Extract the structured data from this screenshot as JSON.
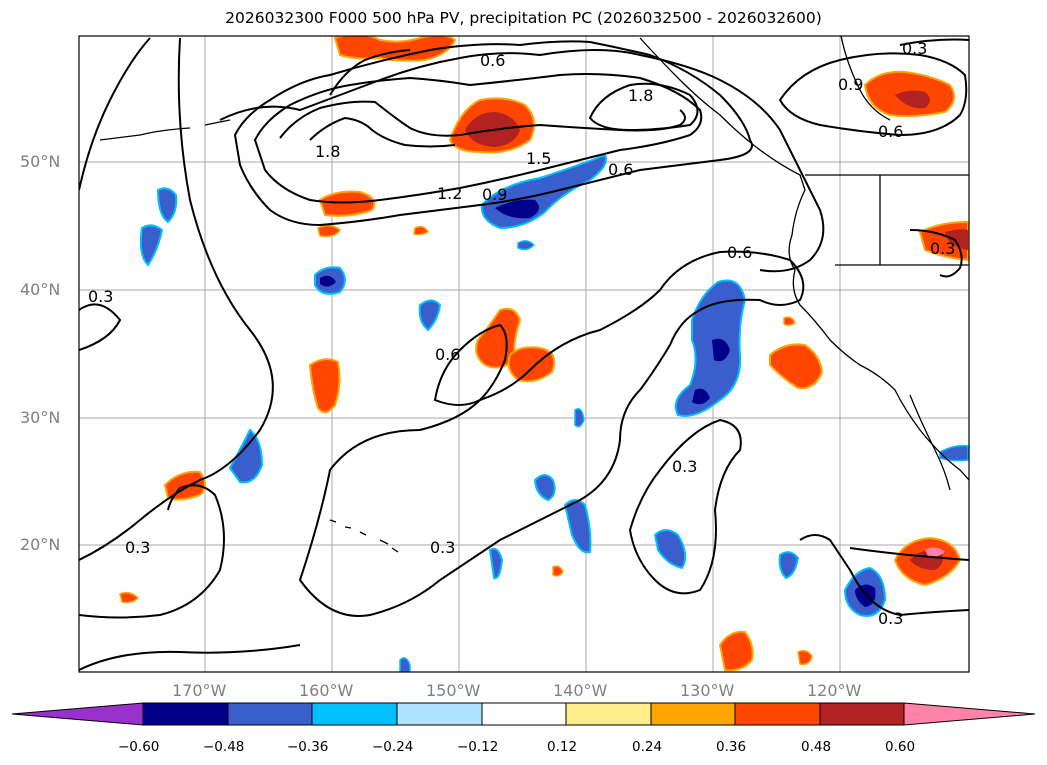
{
  "title": "2026032300 F000 500 hPa PV, precipitation PC (2026032500 - 2026032600)",
  "map": {
    "lat_labels": [
      "50°N",
      "40°N",
      "30°N",
      "20°N"
    ],
    "lon_labels": [
      "170°W",
      "160°W",
      "150°W",
      "140°W",
      "130°W",
      "120°W"
    ],
    "contour_labels": [
      "0.3",
      "0.3",
      "0.3",
      "0.3",
      "0.3",
      "0.3",
      "0.3",
      "0.6",
      "0.6",
      "0.6",
      "0.6",
      "0.6",
      "0.9",
      "0.9",
      "1.2",
      "1.5",
      "1.8",
      "1.8"
    ]
  },
  "colorbar": {
    "ticks": [
      "−0.60",
      "−0.48",
      "−0.36",
      "−0.24",
      "−0.12",
      "0.12",
      "0.24",
      "0.36",
      "0.48",
      "0.60"
    ],
    "colors": [
      "#9932cc",
      "#00008b",
      "#3a5fcd",
      "#00bfff",
      "#b0e2ff",
      "#ffffff",
      "#ffec8b",
      "#ffa500",
      "#ff4500",
      "#b22222",
      "#ff82ab"
    ]
  },
  "colors": {
    "gridline": "#aaaaaa",
    "contour": "#000000",
    "label_gray": "#808080"
  }
}
